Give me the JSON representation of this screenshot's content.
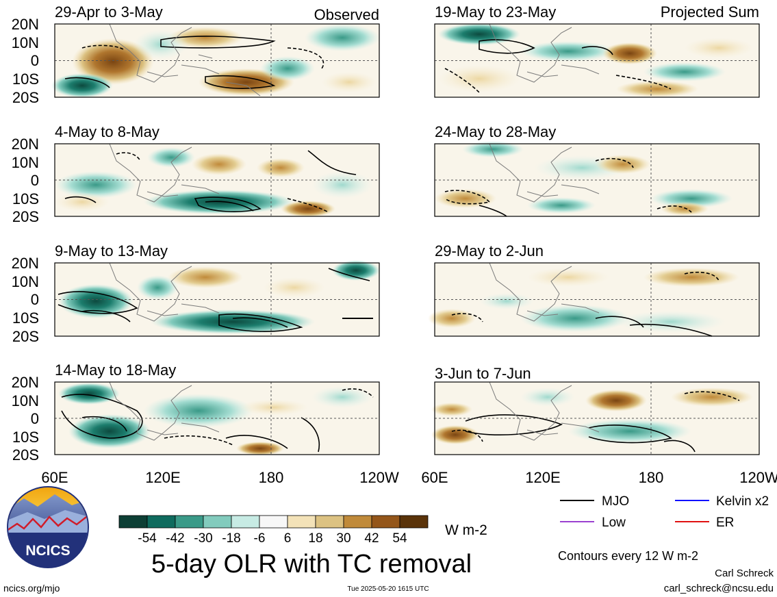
{
  "figure": {
    "title": "5-day OLR with TC removal",
    "units": "W m-2",
    "contour_note": "Contours every 12 W m-2",
    "author": "Carl Schreck",
    "email": "carl_schreck@ncsu.edu",
    "url": "ncics.org/mjo",
    "timestamp": "Tue 2025-05-20 1615 UTC",
    "logo_text": "NCICS"
  },
  "columns": {
    "left_header": "Observed",
    "right_header": "Projected Sum"
  },
  "axes": {
    "lat_ticks": [
      "20N",
      "10N",
      "0",
      "10S",
      "20S"
    ],
    "lon_ticks_left": [
      "60E",
      "120E",
      "180",
      "120W"
    ],
    "lon_ticks_right": [
      "60E",
      "120E",
      "180",
      "120W"
    ]
  },
  "panels": [
    {
      "label": "29-Apr to 3-May",
      "column": "observed"
    },
    {
      "label": "4-May to 8-May",
      "column": "observed"
    },
    {
      "label": "9-May to 13-May",
      "column": "observed"
    },
    {
      "label": "14-May to 18-May",
      "column": "observed"
    },
    {
      "label": "19-May to 23-May",
      "column": "projected"
    },
    {
      "label": "24-May to 28-May",
      "column": "projected"
    },
    {
      "label": "29-May to 2-Jun",
      "column": "projected"
    },
    {
      "label": "3-Jun to 7-Jun",
      "column": "projected"
    }
  ],
  "colorbar": {
    "labels": [
      "-54",
      "-42",
      "-30",
      "-18",
      "-6",
      "6",
      "18",
      "30",
      "42",
      "54"
    ],
    "colors": [
      "#0d3f35",
      "#0f6b5e",
      "#3a9a88",
      "#82cbbd",
      "#c7ebe4",
      "#f7f7f7",
      "#f3e2b8",
      "#dcc282",
      "#c08a3a",
      "#94561a",
      "#5a3309"
    ]
  },
  "legend": [
    {
      "label": "MJO",
      "color": "#000000"
    },
    {
      "label": "Kelvin x2",
      "color": "#1010ff"
    },
    {
      "label": "Low",
      "color": "#9a40d0"
    },
    {
      "label": "ER",
      "color": "#e01010"
    }
  ]
}
